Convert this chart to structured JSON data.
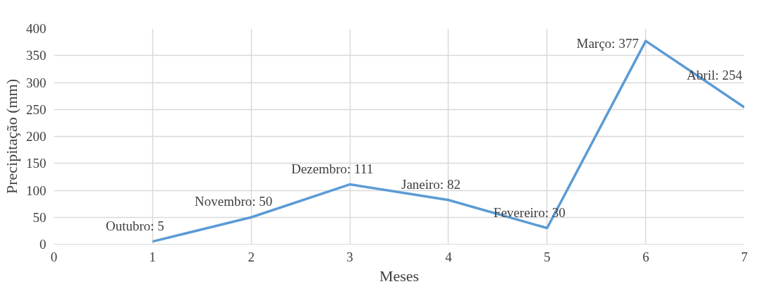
{
  "chart_data": {
    "type": "line",
    "xlabel": "Meses",
    "ylabel": "Precipitação (mm)",
    "x": [
      1,
      2,
      3,
      4,
      5,
      6,
      7
    ],
    "series": [
      {
        "color": "#5b9bd5",
        "values": [
          5,
          50,
          111,
          82,
          30,
          377,
          254
        ],
        "value_labels": [
          "Outubro: 5",
          "Novembro: 50",
          "Dezembro: 111",
          "Janeiro: 82",
          "Fevereiro: 30",
          "Março: 377",
          "Abril: 254"
        ]
      }
    ],
    "xlim": [
      0,
      7
    ],
    "xticks": [
      0,
      1,
      2,
      3,
      4,
      5,
      6,
      7
    ],
    "ylim": [
      0,
      400
    ],
    "yticks": [
      0,
      50,
      100,
      150,
      200,
      250,
      300,
      350,
      400
    ],
    "grid": true,
    "marker": "none",
    "line_style": "solid"
  }
}
